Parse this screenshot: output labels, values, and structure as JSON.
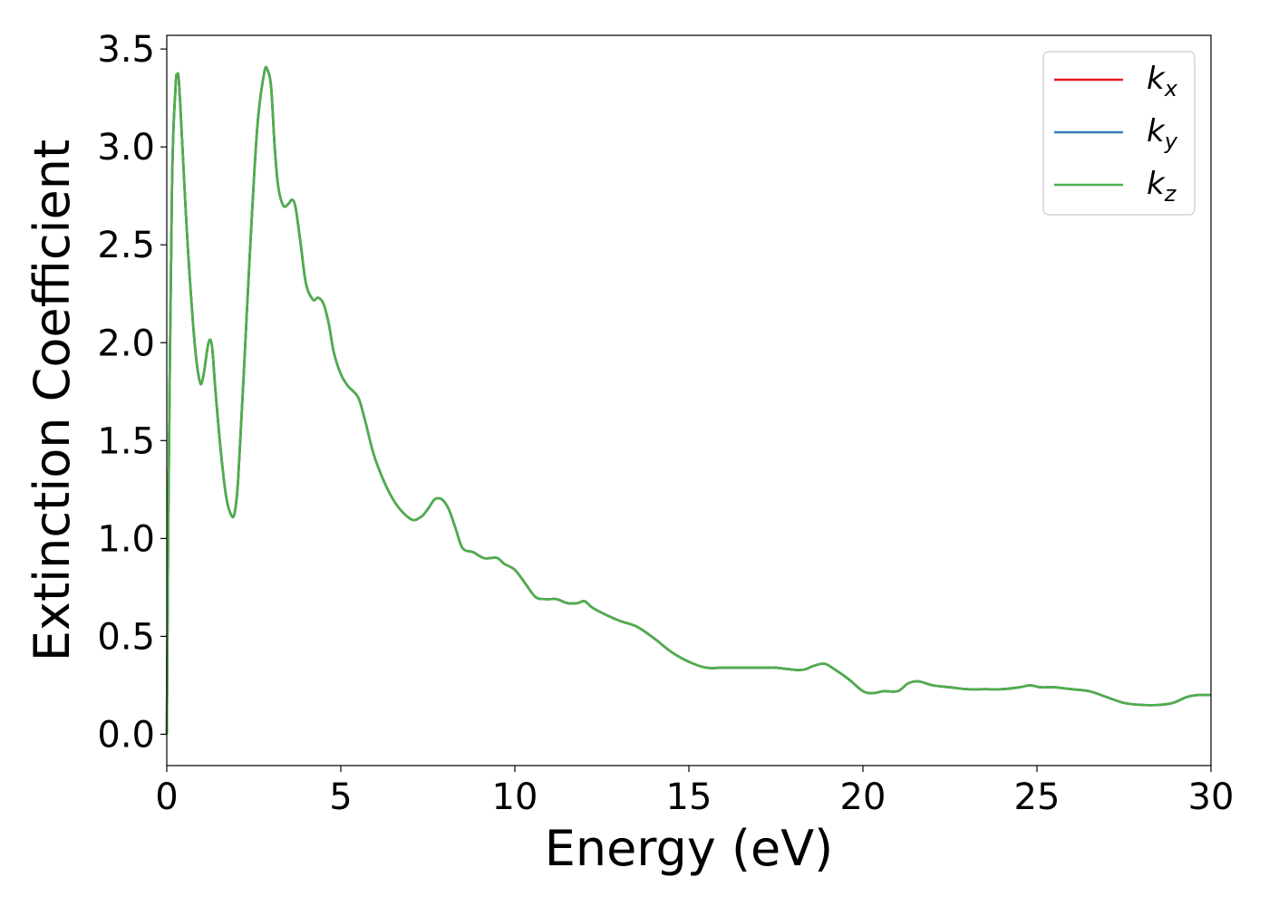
{
  "chart_data": {
    "type": "line",
    "title": "",
    "xlabel": "Energy (eV)",
    "ylabel": "Extinction Coefficient",
    "xlim": [
      0,
      30
    ],
    "ylim": [
      -0.16,
      3.57
    ],
    "xticks": [
      0,
      5,
      10,
      15,
      20,
      25,
      30
    ],
    "xtick_labels": [
      "0",
      "5",
      "10",
      "15",
      "20",
      "25",
      "30"
    ],
    "yticks": [
      0.0,
      0.5,
      1.0,
      1.5,
      2.0,
      2.5,
      3.0,
      3.5
    ],
    "ytick_labels": [
      "0.0",
      "0.5",
      "1.0",
      "1.5",
      "2.0",
      "2.5",
      "3.0",
      "3.5"
    ],
    "grid": false,
    "legend_position": "top-right",
    "series": [
      {
        "name": "k",
        "sub": "x",
        "color": "#e41a1c"
      },
      {
        "name": "k",
        "sub": "y",
        "color": "#377eb8"
      },
      {
        "name": "k",
        "sub": "z",
        "color": "#4daf4a"
      }
    ],
    "x": [
      0,
      0.05,
      0.15,
      0.25,
      0.3,
      0.35,
      0.45,
      0.6,
      0.8,
      0.95,
      1.05,
      1.2,
      1.3,
      1.4,
      1.55,
      1.7,
      1.85,
      1.95,
      2.05,
      2.2,
      2.4,
      2.6,
      2.8,
      2.9,
      3.0,
      3.1,
      3.2,
      3.35,
      3.5,
      3.6,
      3.7,
      3.85,
      4.0,
      4.2,
      4.35,
      4.5,
      4.65,
      4.8,
      5.0,
      5.2,
      5.5,
      5.7,
      6.0,
      6.5,
      7.0,
      7.3,
      7.5,
      7.7,
      7.9,
      8.1,
      8.3,
      8.5,
      8.8,
      9.1,
      9.3,
      9.5,
      9.7,
      10.0,
      10.3,
      10.6,
      10.9,
      11.2,
      11.5,
      11.8,
      12.0,
      12.2,
      12.5,
      13.0,
      13.5,
      14.0,
      14.5,
      15.0,
      15.5,
      16.0,
      16.5,
      17.0,
      17.3,
      17.5,
      18.0,
      18.3,
      18.6,
      18.9,
      19.2,
      19.6,
      20.0,
      20.3,
      20.6,
      21.0,
      21.3,
      21.6,
      22.0,
      22.5,
      23.0,
      23.5,
      24.0,
      24.5,
      24.8,
      25.1,
      25.5,
      26.0,
      26.5,
      27.0,
      27.5,
      28.0,
      28.5,
      28.9,
      29.3,
      29.6,
      30.0
    ],
    "y": [
      0.0,
      1.2,
      2.8,
      3.3,
      3.37,
      3.33,
      3.0,
      2.5,
      2.0,
      1.8,
      1.83,
      2.0,
      1.98,
      1.75,
      1.45,
      1.22,
      1.12,
      1.13,
      1.3,
      1.8,
      2.5,
      3.1,
      3.38,
      3.39,
      3.3,
      3.0,
      2.8,
      2.7,
      2.71,
      2.73,
      2.69,
      2.5,
      2.3,
      2.22,
      2.23,
      2.2,
      2.1,
      1.95,
      1.84,
      1.78,
      1.72,
      1.6,
      1.4,
      1.2,
      1.1,
      1.11,
      1.15,
      1.2,
      1.2,
      1.15,
      1.05,
      0.95,
      0.93,
      0.9,
      0.9,
      0.9,
      0.87,
      0.84,
      0.77,
      0.7,
      0.69,
      0.69,
      0.67,
      0.67,
      0.68,
      0.65,
      0.62,
      0.58,
      0.55,
      0.49,
      0.42,
      0.37,
      0.34,
      0.34,
      0.34,
      0.34,
      0.34,
      0.34,
      0.33,
      0.33,
      0.35,
      0.36,
      0.33,
      0.28,
      0.22,
      0.21,
      0.22,
      0.22,
      0.26,
      0.27,
      0.25,
      0.24,
      0.23,
      0.23,
      0.23,
      0.24,
      0.25,
      0.24,
      0.24,
      0.23,
      0.22,
      0.19,
      0.16,
      0.15,
      0.15,
      0.16,
      0.19,
      0.2,
      0.2
    ]
  }
}
